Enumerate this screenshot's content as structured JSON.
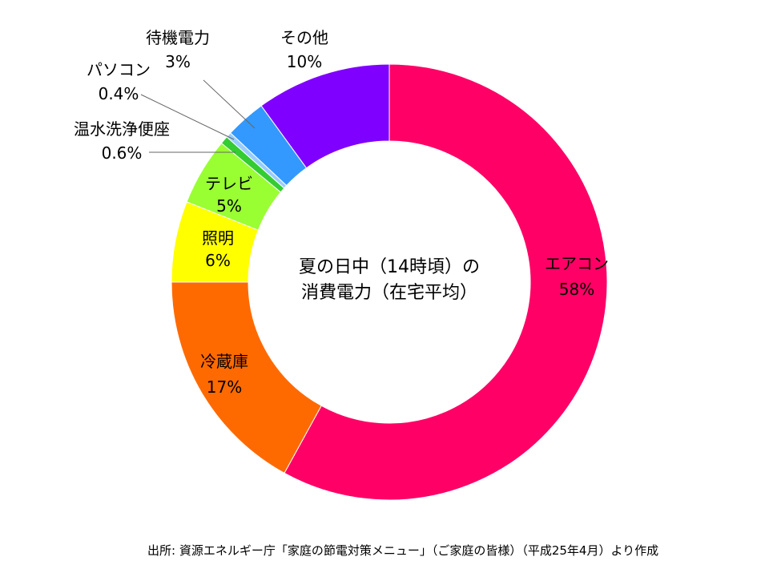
{
  "chart_data": {
    "type": "pie",
    "center_title_line1": "夏の日中（14時頃）の",
    "center_title_line2": "消費電力（在宅平均）",
    "series": [
      {
        "name": "エアコン",
        "value": 58,
        "value_label": "58%",
        "color": "#FF0066"
      },
      {
        "name": "冷蔵庫",
        "value": 17,
        "value_label": "17%",
        "color": "#FF6A00"
      },
      {
        "name": "照明",
        "value": 6,
        "value_label": "6%",
        "color": "#FFFF00"
      },
      {
        "name": "テレビ",
        "value": 5,
        "value_label": "5%",
        "color": "#99FF33"
      },
      {
        "name": "温水洗浄便座",
        "value": 0.6,
        "value_label": "0.6%",
        "color": "#33CC33"
      },
      {
        "name": "パソコン",
        "value": 0.4,
        "value_label": "0.4%",
        "color": "#99CCFF"
      },
      {
        "name": "待機電力",
        "value": 3,
        "value_label": "3%",
        "color": "#3399FF"
      },
      {
        "name": "その他",
        "value": 10,
        "value_label": "10%",
        "color": "#7F00FF"
      }
    ]
  },
  "source_note": "出所: 資源エネルギー庁「家庭の節電対策メニュー」（ご家庭の皆様）（平成25年4月）より作成"
}
